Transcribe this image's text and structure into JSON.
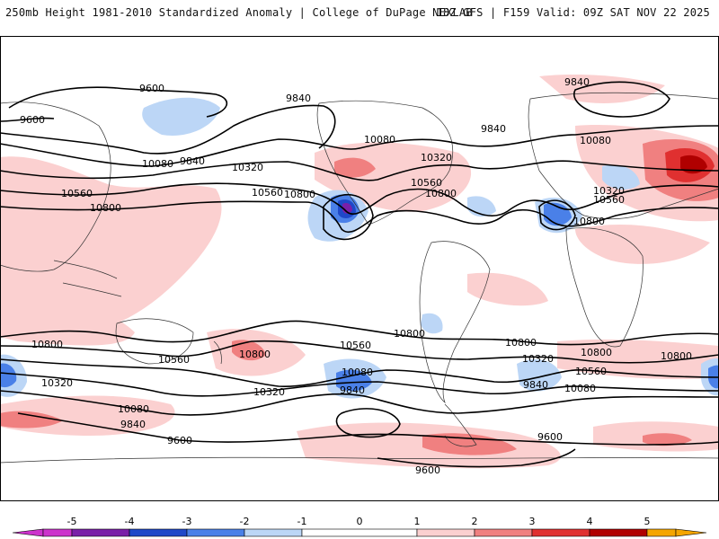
{
  "header": {
    "left": "250mb Height 1981-2010 Standardized Anomaly | College of DuPage NEXLAB",
    "right": "18Z GFS | F159 Valid: 09Z SAT NOV 22 2025"
  },
  "colors": {
    "neg5": "#cc33cc",
    "neg4": "#7a1fa8",
    "neg3": "#1f48c8",
    "neg2": "#4a80e8",
    "neg1": "#bcd6f6",
    "zero": "#ffffff",
    "pos1": "#fbd0d0",
    "pos2": "#f08080",
    "pos3": "#e03030",
    "pos4": "#b00000",
    "pos5": "#f5a500",
    "contour": "#000000",
    "coast": "#333333"
  },
  "colorbar": {
    "ticks": [
      "-5",
      "-4",
      "-3",
      "-2",
      "-1",
      "0",
      "1",
      "2",
      "3",
      "4",
      "5"
    ]
  },
  "contour_labels": [
    "9600",
    "9600",
    "9840",
    "9840",
    "9840",
    "9840",
    "10080",
    "10080",
    "10080",
    "10320",
    "10320",
    "10320",
    "10560",
    "10560",
    "10560",
    "10560",
    "10800",
    "10800",
    "10800",
    "10800",
    "10800",
    "10800",
    "10800",
    "10800",
    "10800",
    "10800",
    "10560",
    "10560",
    "10560",
    "10320",
    "10320",
    "10320",
    "10080",
    "10080",
    "10080",
    "9840",
    "9840",
    "9840",
    "9600",
    "9600",
    "9600"
  ]
}
